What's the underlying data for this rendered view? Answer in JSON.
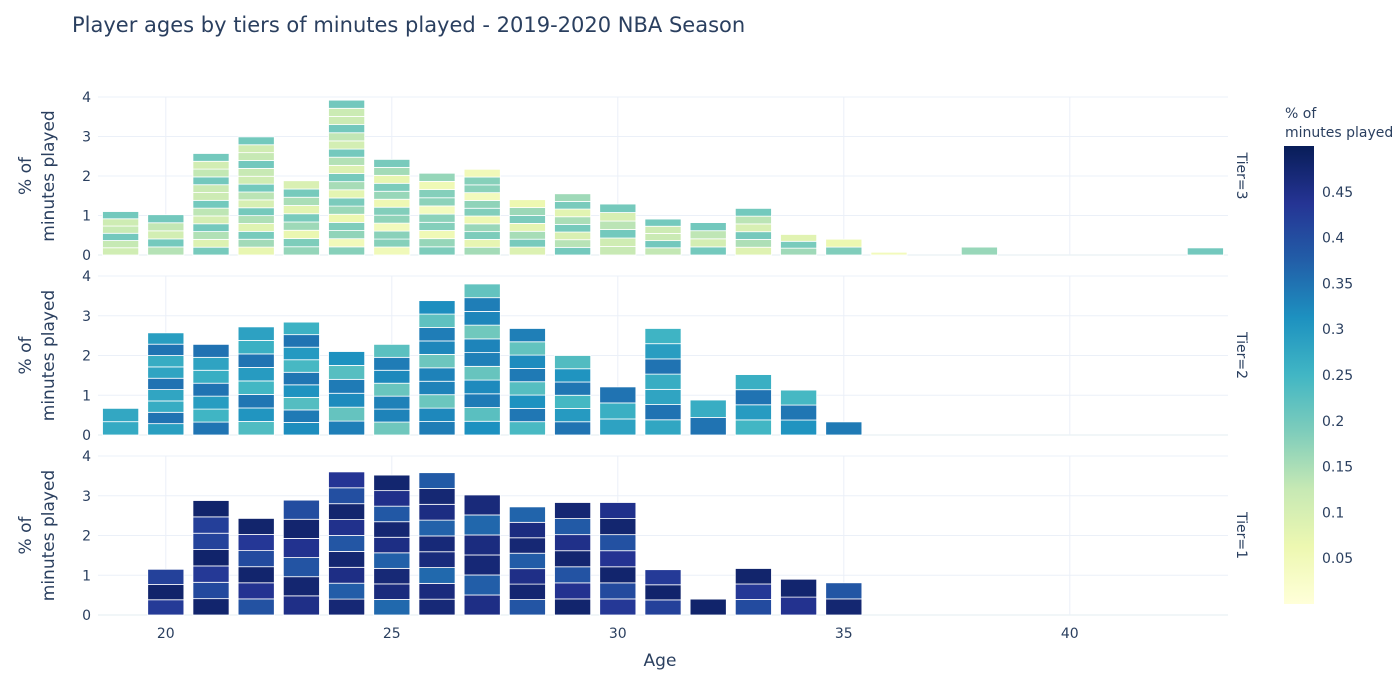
{
  "chart_data": {
    "type": "bar",
    "title": "Player ages by tiers of minutes played - 2019-2020 NBA Season",
    "xlabel": "Age",
    "ylabel": "% of minutes played",
    "xlim": [
      18.5,
      43.5
    ],
    "ylim": [
      0,
      4
    ],
    "xticks": [
      20,
      25,
      30,
      35,
      40
    ],
    "yticks": [
      0,
      1,
      2,
      3,
      4
    ],
    "grid": true,
    "colorbar": {
      "title": "% of minutes played",
      "ticks": [
        0.05,
        0.1,
        0.15,
        0.2,
        0.25,
        0.3,
        0.35,
        0.4,
        0.45
      ],
      "range": [
        0,
        0.5
      ],
      "colors": [
        "#ffffd9",
        "#edf8b1",
        "#c7e9b4",
        "#7fcdbb",
        "#41b6c4",
        "#1d91c0",
        "#225ea8",
        "#253494",
        "#081d58"
      ]
    },
    "facets": [
      {
        "label": "Tier=3",
        "segment_color_range": [
          0.04,
          0.2
        ],
        "x": [
          19,
          20,
          21,
          22,
          23,
          24,
          25,
          26,
          27,
          28,
          29,
          30,
          31,
          32,
          33,
          34,
          35,
          36,
          38,
          43
        ],
        "values": [
          1.1,
          1.02,
          2.57,
          2.99,
          1.88,
          3.92,
          2.42,
          2.07,
          2.17,
          1.4,
          1.55,
          1.29,
          0.91,
          0.82,
          1.18,
          0.52,
          0.4,
          0.07,
          0.2,
          0.18
        ],
        "segments": [
          6,
          5,
          13,
          15,
          9,
          19,
          12,
          10,
          11,
          7,
          8,
          6,
          5,
          4,
          6,
          3,
          2,
          1,
          1,
          1
        ]
      },
      {
        "label": "Tier=2",
        "segment_color_range": [
          0.2,
          0.35
        ],
        "x": [
          19,
          20,
          21,
          22,
          23,
          24,
          25,
          26,
          27,
          28,
          29,
          30,
          31,
          32,
          33,
          34,
          35
        ],
        "values": [
          0.67,
          2.57,
          2.28,
          2.72,
          2.84,
          2.1,
          2.28,
          3.38,
          3.8,
          2.68,
          2.0,
          1.21,
          2.68,
          0.88,
          1.52,
          1.13,
          0.33
        ],
        "segments": [
          2,
          9,
          7,
          8,
          9,
          6,
          7,
          10,
          11,
          8,
          6,
          3,
          7,
          2,
          4,
          3,
          1
        ]
      },
      {
        "label": "Tier=1",
        "segment_color_range": [
          0.36,
          0.48
        ],
        "x": [
          20,
          21,
          22,
          23,
          24,
          25,
          26,
          27,
          28,
          29,
          30,
          31,
          32,
          33,
          34,
          35
        ],
        "values": [
          1.15,
          2.88,
          2.43,
          2.89,
          3.6,
          3.52,
          3.58,
          3.02,
          2.72,
          2.83,
          2.83,
          1.14,
          0.4,
          1.17,
          0.9,
          0.81
        ],
        "segments": [
          3,
          7,
          6,
          6,
          9,
          9,
          9,
          6,
          7,
          7,
          7,
          3,
          1,
          3,
          2,
          2
        ]
      }
    ]
  }
}
